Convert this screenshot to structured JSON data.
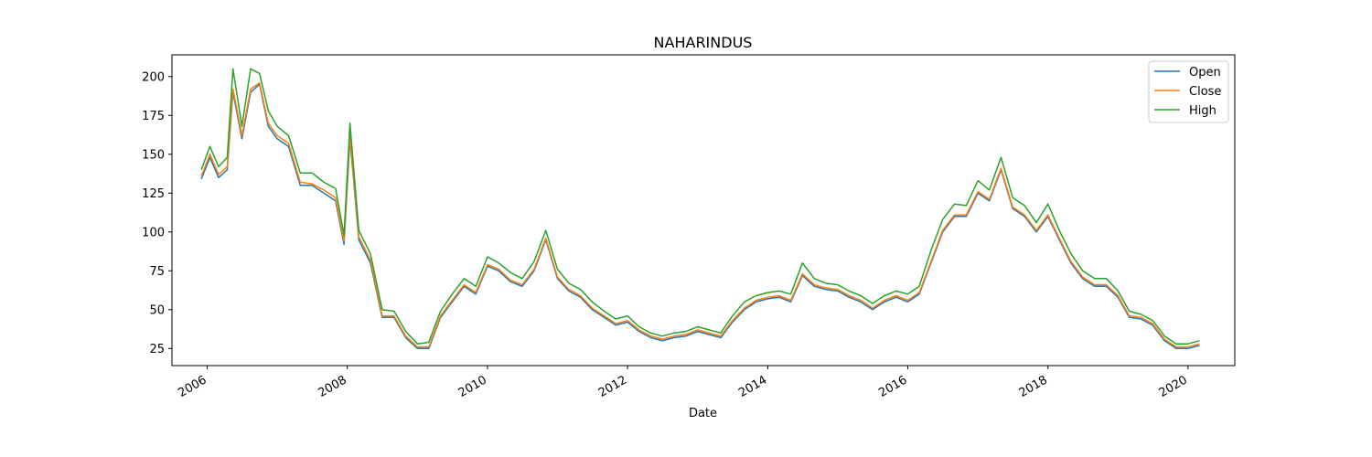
{
  "chart_data": {
    "type": "line",
    "title": "NAHARINDUS",
    "xlabel": "Date",
    "ylabel": "",
    "xlim": [
      "2005-07-01",
      "2020-09-01"
    ],
    "ylim": [
      14,
      214
    ],
    "x_ticks": [
      "2006",
      "2008",
      "2010",
      "2012",
      "2014",
      "2016",
      "2018",
      "2020"
    ],
    "y_ticks": [
      25,
      50,
      75,
      100,
      125,
      150,
      175,
      200
    ],
    "legend_position": "upper right",
    "grid": false,
    "colors": {
      "Open": "#1f77b4",
      "Close": "#ff7f0e",
      "High": "#2ca02c"
    },
    "x": [
      "2005-12-01",
      "2006-01-15",
      "2006-03-01",
      "2006-04-15",
      "2006-05-15",
      "2006-07-01",
      "2006-08-15",
      "2006-10-01",
      "2006-11-15",
      "2007-01-01",
      "2007-03-01",
      "2007-05-01",
      "2007-07-01",
      "2007-09-01",
      "2007-11-01",
      "2007-12-15",
      "2008-01-15",
      "2008-03-01",
      "2008-05-01",
      "2008-07-01",
      "2008-09-01",
      "2008-11-01",
      "2009-01-01",
      "2009-03-01",
      "2009-05-01",
      "2009-07-01",
      "2009-09-01",
      "2009-11-01",
      "2010-01-01",
      "2010-03-01",
      "2010-05-01",
      "2010-07-01",
      "2010-09-01",
      "2010-11-01",
      "2011-01-01",
      "2011-03-01",
      "2011-05-01",
      "2011-07-01",
      "2011-09-01",
      "2011-11-01",
      "2012-01-01",
      "2012-03-01",
      "2012-05-01",
      "2012-07-01",
      "2012-09-01",
      "2012-11-01",
      "2013-01-01",
      "2013-03-01",
      "2013-05-01",
      "2013-07-01",
      "2013-09-01",
      "2013-11-01",
      "2014-01-01",
      "2014-03-01",
      "2014-05-01",
      "2014-07-01",
      "2014-09-01",
      "2014-11-01",
      "2015-01-01",
      "2015-03-01",
      "2015-05-01",
      "2015-07-01",
      "2015-09-01",
      "2015-11-01",
      "2016-01-01",
      "2016-03-01",
      "2016-05-01",
      "2016-07-01",
      "2016-09-01",
      "2016-11-01",
      "2017-01-01",
      "2017-03-01",
      "2017-05-01",
      "2017-07-01",
      "2017-09-01",
      "2017-11-01",
      "2018-01-01",
      "2018-03-01",
      "2018-05-01",
      "2018-07-01",
      "2018-09-01",
      "2018-11-01",
      "2019-01-01",
      "2019-03-01",
      "2019-05-01",
      "2019-07-01",
      "2019-09-01",
      "2019-11-01",
      "2020-01-01",
      "2020-03-01"
    ],
    "series": [
      {
        "name": "Open",
        "values": [
          134,
          148,
          135,
          140,
          190,
          160,
          190,
          195,
          168,
          160,
          155,
          130,
          130,
          125,
          120,
          92,
          160,
          95,
          80,
          45,
          45,
          32,
          25,
          25,
          45,
          55,
          65,
          60,
          78,
          75,
          68,
          65,
          75,
          95,
          70,
          62,
          58,
          50,
          45,
          40,
          42,
          36,
          32,
          30,
          32,
          33,
          36,
          34,
          32,
          42,
          50,
          55,
          57,
          58,
          55,
          72,
          65,
          63,
          62,
          58,
          55,
          50,
          55,
          58,
          55,
          60,
          80,
          100,
          110,
          110,
          125,
          120,
          140,
          115,
          110,
          100,
          110,
          95,
          80,
          70,
          65,
          65,
          58,
          45,
          44,
          40,
          30,
          25,
          25,
          27
        ]
      },
      {
        "name": "Close",
        "values": [
          136,
          150,
          137,
          142,
          192,
          162,
          192,
          196,
          170,
          162,
          157,
          132,
          131,
          127,
          122,
          94,
          162,
          97,
          82,
          46,
          46,
          33,
          26,
          26,
          46,
          56,
          66,
          61,
          79,
          76,
          69,
          66,
          76,
          96,
          71,
          63,
          59,
          51,
          46,
          41,
          43,
          37,
          33,
          31,
          33,
          34,
          37,
          35,
          33,
          43,
          51,
          56,
          58,
          59,
          56,
          73,
          66,
          64,
          63,
          59,
          56,
          51,
          56,
          59,
          56,
          61,
          81,
          101,
          111,
          111,
          126,
          121,
          141,
          116,
          111,
          101,
          111,
          96,
          81,
          71,
          66,
          66,
          59,
          46,
          45,
          41,
          31,
          26,
          26,
          28
        ]
      },
      {
        "name": "High",
        "values": [
          140,
          155,
          142,
          148,
          205,
          168,
          205,
          202,
          178,
          168,
          162,
          138,
          138,
          132,
          128,
          98,
          170,
          101,
          86,
          50,
          49,
          36,
          28,
          29,
          49,
          60,
          70,
          65,
          84,
          80,
          74,
          70,
          81,
          101,
          76,
          67,
          63,
          55,
          49,
          44,
          46,
          39,
          35,
          33,
          35,
          36,
          39,
          37,
          35,
          46,
          55,
          59,
          61,
          62,
          60,
          80,
          70,
          67,
          66,
          62,
          59,
          54,
          59,
          62,
          60,
          65,
          88,
          108,
          118,
          117,
          133,
          127,
          148,
          122,
          117,
          106,
          118,
          101,
          86,
          75,
          70,
          70,
          62,
          49,
          47,
          43,
          33,
          28,
          28,
          30
        ]
      }
    ]
  }
}
